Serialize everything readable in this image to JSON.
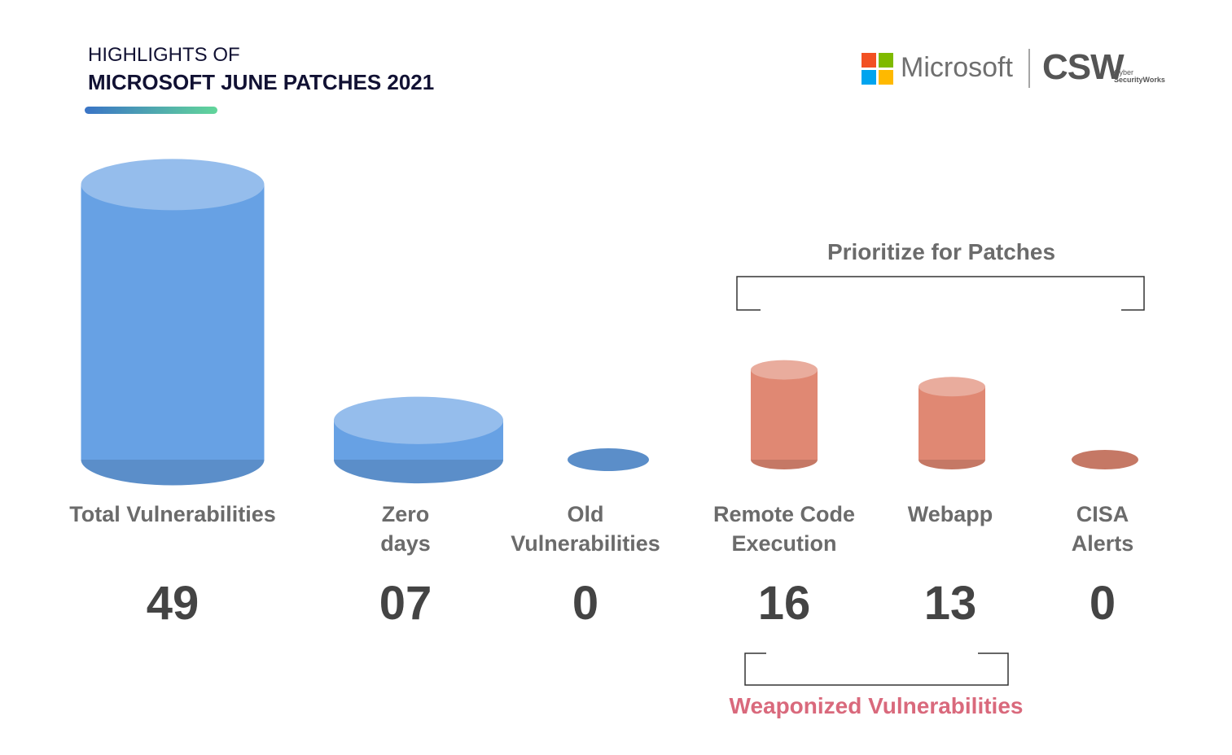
{
  "chart_data": {
    "type": "cylinder",
    "title": "HIGHLIGHTS OF",
    "subtitle": "MICROSOFT JUNE PATCHES 2021",
    "categories": [
      "Total Vulnerabilities",
      "Zero\ndays",
      "Old\nVulnerabilities",
      "Remote Code\nExecution",
      "Webapp",
      "CISA\nAlerts"
    ],
    "values": [
      49,
      7,
      0,
      16,
      13,
      0
    ],
    "value_labels": [
      "49",
      "07",
      "0",
      "16",
      "13",
      "0"
    ],
    "colors": [
      "#67a1e4",
      "#67a1e4",
      "#67a1e4",
      "#e08873",
      "#e08873",
      "#e08873"
    ],
    "annotations": [
      "Prioritize for Patches",
      "Weaponized Vulnerabilities"
    ]
  },
  "logos": [
    "Microsoft",
    "CSW",
    "Cyber",
    "SecurityWorks"
  ]
}
